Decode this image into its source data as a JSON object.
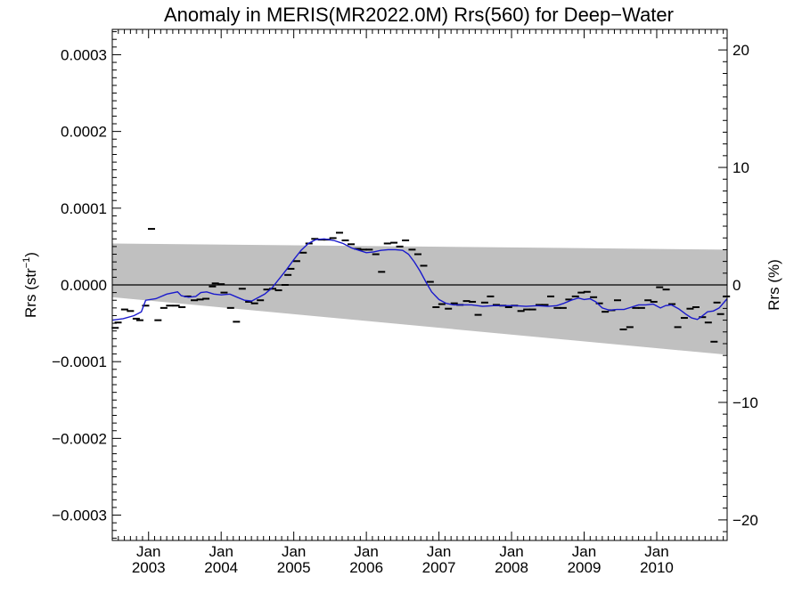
{
  "chart_data": {
    "type": "line",
    "title": "Anomaly in MERIS(MR2022.0M) Rrs(560) for Deep−Water",
    "ylabel_left": {
      "base": "Rrs (str",
      "sup": "−1",
      "close": ")"
    },
    "ylabel_right": "Rrs (%)",
    "xlim": [
      2002.5,
      2010.97
    ],
    "ylim_left": [
      -0.000333,
      0.000333
    ],
    "ylim_right": [
      -21.75,
      21.75
    ],
    "y_ticks_left": [
      {
        "value": 0.0003,
        "label": "0.0003"
      },
      {
        "value": 0.0002,
        "label": "0.0002"
      },
      {
        "value": 0.0001,
        "label": "0.0001"
      },
      {
        "value": 0.0,
        "label": "0.0000"
      },
      {
        "value": -0.0001,
        "label": "−0.0001"
      },
      {
        "value": -0.0002,
        "label": "−0.0002"
      },
      {
        "value": -0.0003,
        "label": "−0.0003"
      }
    ],
    "y_ticks_right": [
      {
        "value": 20,
        "label": "20"
      },
      {
        "value": 10,
        "label": "10"
      },
      {
        "value": 0,
        "label": "0"
      },
      {
        "value": -10,
        "label": "−10"
      },
      {
        "value": -20,
        "label": "−20"
      }
    ],
    "x_ticks": [
      {
        "value": 2003.0,
        "month": "Jan",
        "year": "2003"
      },
      {
        "value": 2004.0,
        "month": "Jan",
        "year": "2004"
      },
      {
        "value": 2005.0,
        "month": "Jan",
        "year": "2005"
      },
      {
        "value": 2006.0,
        "month": "Jan",
        "year": "2006"
      },
      {
        "value": 2007.0,
        "month": "Jan",
        "year": "2007"
      },
      {
        "value": 2008.0,
        "month": "Jan",
        "year": "2008"
      },
      {
        "value": 2009.0,
        "month": "Jan",
        "year": "2009"
      },
      {
        "value": 2010.0,
        "month": "Jan",
        "year": "2010"
      }
    ],
    "uncertainty_band": {
      "upper": [
        [
          2002.5,
          5.4e-05
        ],
        [
          2010.97,
          4.6e-05
        ]
      ],
      "lower": [
        [
          2002.5,
          -1.6e-05
        ],
        [
          2010.97,
          -9.1e-05
        ]
      ],
      "color": "#c0c0c0"
    },
    "zero_line": true,
    "points": [
      [
        2002.54,
        -5.6e-05
      ],
      [
        2002.58,
        -4.9e-05
      ],
      [
        2002.67,
        -3.2e-05
      ],
      [
        2002.75,
        -3.4e-05
      ],
      [
        2002.83,
        -4.4e-05
      ],
      [
        2002.88,
        -4.6e-05
      ],
      [
        2002.96,
        -2.7e-05
      ],
      [
        2003.04,
        7.3e-05
      ],
      [
        2003.13,
        -4.6e-05
      ],
      [
        2003.21,
        -3e-05
      ],
      [
        2003.29,
        -2.7e-05
      ],
      [
        2003.38,
        -2.7e-05
      ],
      [
        2003.46,
        -2.9e-05
      ],
      [
        2003.54,
        -1.5e-05
      ],
      [
        2003.63,
        -2e-05
      ],
      [
        2003.71,
        -1.9e-05
      ],
      [
        2003.79,
        -1.8e-05
      ],
      [
        2003.88,
        -2e-06
      ],
      [
        2003.92,
        2e-06
      ],
      [
        2004.0,
        1e-06
      ],
      [
        2004.04,
        -1e-05
      ],
      [
        2004.13,
        -3e-05
      ],
      [
        2004.21,
        -4.8e-05
      ],
      [
        2004.29,
        -5e-06
      ],
      [
        2004.38,
        -2.2e-05
      ],
      [
        2004.46,
        -2.4e-05
      ],
      [
        2004.54,
        -2e-05
      ],
      [
        2004.63,
        -6e-06
      ],
      [
        2004.71,
        -5e-06
      ],
      [
        2004.79,
        -7e-06
      ],
      [
        2004.88,
        0.0
      ],
      [
        2004.92,
        1.3e-05
      ],
      [
        2004.96,
        2.1e-05
      ],
      [
        2005.04,
        3.1e-05
      ],
      [
        2005.13,
        4.2e-05
      ],
      [
        2005.21,
        5.4e-05
      ],
      [
        2005.29,
        6e-05
      ],
      [
        2005.38,
        5.9e-05
      ],
      [
        2005.46,
        5.9e-05
      ],
      [
        2005.54,
        6.1e-05
      ],
      [
        2005.63,
        6.8e-05
      ],
      [
        2005.71,
        5.8e-05
      ],
      [
        2005.79,
        5.3e-05
      ],
      [
        2005.88,
        4.7e-05
      ],
      [
        2005.96,
        4.6e-05
      ],
      [
        2006.04,
        4.6e-05
      ],
      [
        2006.13,
        4e-05
      ],
      [
        2006.21,
        1.7e-05
      ],
      [
        2006.29,
        5.4e-05
      ],
      [
        2006.38,
        5.5e-05
      ],
      [
        2006.46,
        5e-05
      ],
      [
        2006.54,
        5.8e-05
      ],
      [
        2006.63,
        4.6e-05
      ],
      [
        2006.71,
        4e-05
      ],
      [
        2006.79,
        2.5e-05
      ],
      [
        2006.88,
        4e-06
      ],
      [
        2006.96,
        -2.9e-05
      ],
      [
        2007.04,
        -2.5e-05
      ],
      [
        2007.13,
        -3.1e-05
      ],
      [
        2007.21,
        -2.4e-05
      ],
      [
        2007.29,
        -2.6e-05
      ],
      [
        2007.38,
        -2.1e-05
      ],
      [
        2007.46,
        -2.2e-05
      ],
      [
        2007.54,
        -3.9e-05
      ],
      [
        2007.63,
        -2.3e-05
      ],
      [
        2007.71,
        -1.5e-05
      ],
      [
        2007.79,
        -2.6e-05
      ],
      [
        2007.88,
        -2.7e-05
      ],
      [
        2007.96,
        -2.9e-05
      ],
      [
        2008.04,
        -2.7e-05
      ],
      [
        2008.13,
        -3.4e-05
      ],
      [
        2008.21,
        -3.2e-05
      ],
      [
        2008.29,
        -3.2e-05
      ],
      [
        2008.38,
        -2.6e-05
      ],
      [
        2008.46,
        -2.6e-05
      ],
      [
        2008.54,
        -1.5e-05
      ],
      [
        2008.63,
        -3e-05
      ],
      [
        2008.71,
        -3e-05
      ],
      [
        2008.79,
        -1.9e-05
      ],
      [
        2008.88,
        -1.5e-05
      ],
      [
        2008.96,
        -1e-05
      ],
      [
        2009.04,
        -9e-06
      ],
      [
        2009.13,
        -1.6e-05
      ],
      [
        2009.21,
        -2.4e-05
      ],
      [
        2009.29,
        -3.5e-05
      ],
      [
        2009.38,
        -3.3e-05
      ],
      [
        2009.46,
        -2e-05
      ],
      [
        2009.54,
        -5.8e-05
      ],
      [
        2009.63,
        -5.5e-05
      ],
      [
        2009.71,
        -3e-05
      ],
      [
        2009.79,
        -3e-05
      ],
      [
        2009.88,
        -2e-05
      ],
      [
        2009.96,
        -2.2e-05
      ],
      [
        2010.04,
        -3e-06
      ],
      [
        2010.13,
        -6e-06
      ],
      [
        2010.21,
        -2.5e-05
      ],
      [
        2010.29,
        -5.5e-05
      ],
      [
        2010.38,
        -4.3e-05
      ],
      [
        2010.46,
        -3.1e-05
      ],
      [
        2010.54,
        -2.9e-05
      ],
      [
        2010.63,
        -4.2e-05
      ],
      [
        2010.71,
        -4.9e-05
      ],
      [
        2010.79,
        -7.4e-05
      ],
      [
        2010.83,
        -2.3e-05
      ],
      [
        2010.88,
        -3.8e-05
      ],
      [
        2010.96,
        -1.5e-05
      ]
    ],
    "smooth_line": {
      "color": "#1a1acc",
      "points": [
        [
          2002.5,
          -4.6e-05
        ],
        [
          2002.65,
          -4.4e-05
        ],
        [
          2002.8,
          -4e-05
        ],
        [
          2002.9,
          -3.5e-05
        ],
        [
          2002.96,
          -2e-05
        ],
        [
          2003.1,
          -1.8e-05
        ],
        [
          2003.25,
          -1.2e-05
        ],
        [
          2003.4,
          -9e-06
        ],
        [
          2003.45,
          -1.4e-05
        ],
        [
          2003.55,
          -1.6e-05
        ],
        [
          2003.65,
          -1.5e-05
        ],
        [
          2003.72,
          -1e-05
        ],
        [
          2003.8,
          -9e-06
        ],
        [
          2003.9,
          -1.2e-05
        ],
        [
          2004.0,
          -1.3e-05
        ],
        [
          2004.12,
          -1.2e-05
        ],
        [
          2004.22,
          -1.6e-05
        ],
        [
          2004.32,
          -2e-05
        ],
        [
          2004.42,
          -2.1e-05
        ],
        [
          2004.52,
          -1.6e-05
        ],
        [
          2004.6,
          -1.2e-05
        ],
        [
          2004.7,
          -4e-06
        ],
        [
          2004.8,
          8e-06
        ],
        [
          2004.9,
          2e-05
        ],
        [
          2005.0,
          3.3e-05
        ],
        [
          2005.1,
          4.5e-05
        ],
        [
          2005.2,
          5.4e-05
        ],
        [
          2005.3,
          5.9e-05
        ],
        [
          2005.42,
          6e-05
        ],
        [
          2005.55,
          5.8e-05
        ],
        [
          2005.68,
          5.4e-05
        ],
        [
          2005.8,
          4.8e-05
        ],
        [
          2005.9,
          4.5e-05
        ],
        [
          2006.0,
          4.2e-05
        ],
        [
          2006.1,
          4.3e-05
        ],
        [
          2006.2,
          4.5e-05
        ],
        [
          2006.3,
          4.6e-05
        ],
        [
          2006.4,
          4.6e-05
        ],
        [
          2006.5,
          4.5e-05
        ],
        [
          2006.58,
          4e-05
        ],
        [
          2006.66,
          3e-05
        ],
        [
          2006.74,
          1.8e-05
        ],
        [
          2006.82,
          4e-06
        ],
        [
          2006.9,
          -9e-06
        ],
        [
          2007.0,
          -1.9e-05
        ],
        [
          2007.1,
          -2.4e-05
        ],
        [
          2007.2,
          -2.6e-05
        ],
        [
          2007.32,
          -2.6e-05
        ],
        [
          2007.45,
          -2.6e-05
        ],
        [
          2007.6,
          -2.8e-05
        ],
        [
          2007.75,
          -2.7e-05
        ],
        [
          2007.9,
          -2.7e-05
        ],
        [
          2008.05,
          -2.7e-05
        ],
        [
          2008.2,
          -2.8e-05
        ],
        [
          2008.35,
          -2.7e-05
        ],
        [
          2008.5,
          -2.8e-05
        ],
        [
          2008.62,
          -2.7e-05
        ],
        [
          2008.72,
          -2.4e-05
        ],
        [
          2008.82,
          -2e-05
        ],
        [
          2008.92,
          -1.7e-05
        ],
        [
          2009.0,
          -1.9e-05
        ],
        [
          2009.08,
          -1.8e-05
        ],
        [
          2009.16,
          -2.2e-05
        ],
        [
          2009.25,
          -3e-05
        ],
        [
          2009.35,
          -3.3e-05
        ],
        [
          2009.45,
          -3.2e-05
        ],
        [
          2009.55,
          -3.2e-05
        ],
        [
          2009.65,
          -2.9e-05
        ],
        [
          2009.75,
          -2.6e-05
        ],
        [
          2009.85,
          -2.6e-05
        ],
        [
          2009.95,
          -2.5e-05
        ],
        [
          2010.05,
          -3e-05
        ],
        [
          2010.12,
          -2.7e-05
        ],
        [
          2010.2,
          -2.6e-05
        ],
        [
          2010.3,
          -3.1e-05
        ],
        [
          2010.4,
          -3.8e-05
        ],
        [
          2010.48,
          -4.3e-05
        ],
        [
          2010.56,
          -4.5e-05
        ],
        [
          2010.62,
          -4.1e-05
        ],
        [
          2010.7,
          -3.5e-05
        ],
        [
          2010.78,
          -3.4e-05
        ],
        [
          2010.86,
          -3e-05
        ],
        [
          2010.97,
          -1.8e-05
        ]
      ]
    }
  }
}
